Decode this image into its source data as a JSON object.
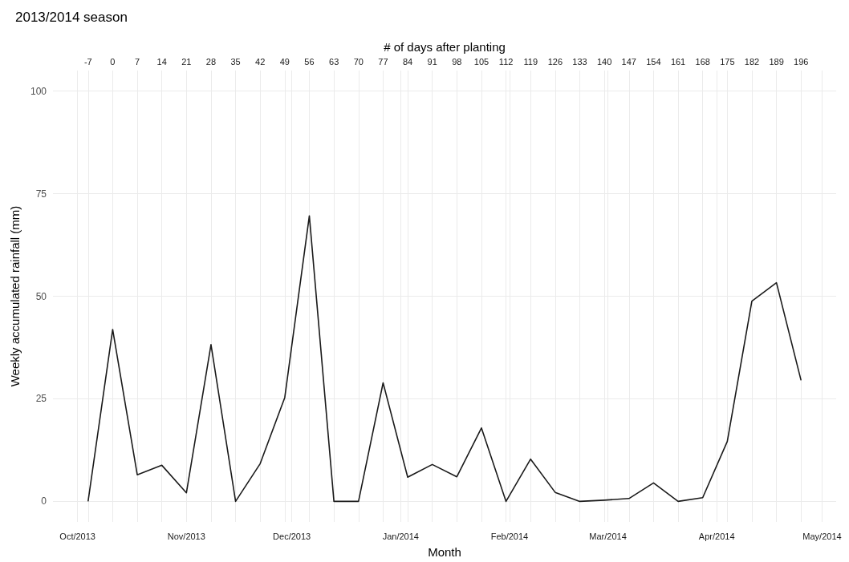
{
  "chart_data": {
    "type": "line",
    "title": "2013/2014 season",
    "xlabel": "Month",
    "x2label": "# of days after planting",
    "ylabel": "Weekly accumulated rainfall (mm)",
    "x": [
      "2013-10-04",
      "2013-10-11",
      "2013-10-18",
      "2013-10-25",
      "2013-11-01",
      "2013-11-08",
      "2013-11-15",
      "2013-11-22",
      "2013-11-29",
      "2013-12-06",
      "2013-12-13",
      "2013-12-20",
      "2013-12-27",
      "2014-01-03",
      "2014-01-10",
      "2014-01-17",
      "2014-01-24",
      "2014-01-31",
      "2014-02-07",
      "2014-02-14",
      "2014-02-21",
      "2014-02-28",
      "2014-03-07",
      "2014-03-14",
      "2014-03-21",
      "2014-03-28",
      "2014-04-04",
      "2014-04-11",
      "2014-04-18",
      "2014-04-25"
    ],
    "series": [
      {
        "color": "#1a1a1a",
        "values": [
          0,
          41.9,
          6.5,
          8.8,
          2.1,
          38.2,
          0,
          9.2,
          25.3,
          69.6,
          0,
          0,
          28.9,
          5.9,
          9.0,
          6.0,
          17.9,
          0,
          10.3,
          2.2,
          0,
          0.3,
          0.7,
          4.5,
          0,
          0.9,
          14.6,
          48.8,
          53.3,
          29.5
        ]
      }
    ],
    "xlim": [
      "2013-09-24",
      "2014-05-05"
    ],
    "xticks": [
      {
        "value": "2013-10-01",
        "label": "Oct/2013"
      },
      {
        "value": "2013-11-01",
        "label": "Nov/2013"
      },
      {
        "value": "2013-12-01",
        "label": "Dec/2013"
      },
      {
        "value": "2014-01-01",
        "label": "Jan/2014"
      },
      {
        "value": "2014-02-01",
        "label": "Feb/2014"
      },
      {
        "value": "2014-03-01",
        "label": "Mar/2014"
      },
      {
        "value": "2014-04-01",
        "label": "Apr/2014"
      },
      {
        "value": "2014-05-01",
        "label": "May/2014"
      }
    ],
    "x2lim": [
      -17,
      206
    ],
    "x2ticks": [
      -7,
      0,
      7,
      14,
      21,
      28,
      35,
      42,
      49,
      56,
      63,
      70,
      77,
      84,
      91,
      98,
      105,
      112,
      119,
      126,
      133,
      140,
      147,
      154,
      161,
      168,
      175,
      182,
      189,
      196
    ],
    "ylim": [
      -5,
      105
    ],
    "yticks": [
      0,
      25,
      50,
      75,
      100
    ],
    "grid": true,
    "marker": "none",
    "line_style": "solid"
  }
}
